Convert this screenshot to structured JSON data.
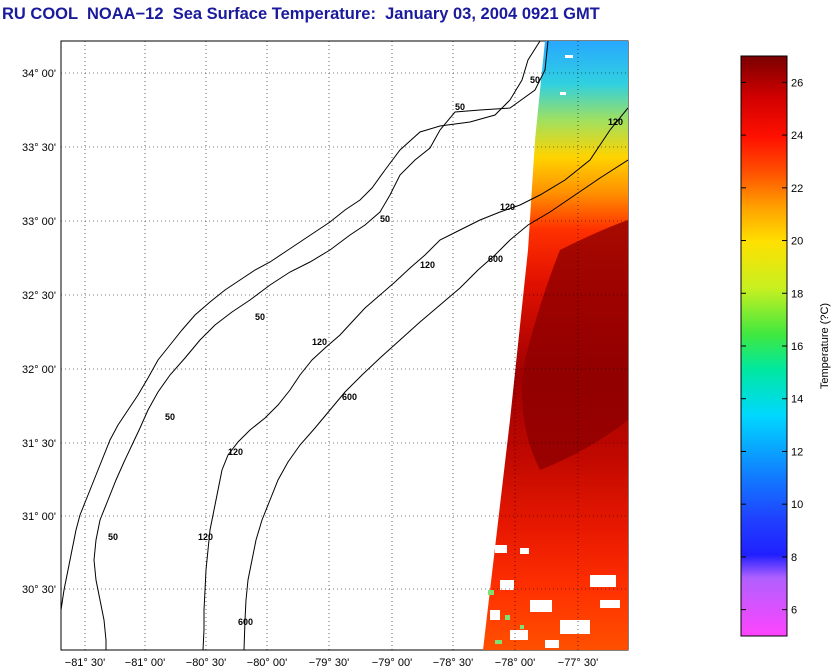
{
  "title": "RU COOL  NOAA−12  Sea Surface Temperature:  January 03, 2004 0921 GMT",
  "map": {
    "lat_ticks": [
      "34° 00'",
      "33° 30'",
      "33° 00'",
      "32° 30'",
      "32° 00'",
      "31° 30'",
      "31° 00'",
      "30° 30'"
    ],
    "lon_ticks": [
      "−81° 30'",
      "−81° 00'",
      "−80° 30'",
      "−80° 00'",
      "−79° 30'",
      "−79° 00'",
      "−78° 30'",
      "−78° 00'",
      "−77° 30'"
    ],
    "contour_labels": [
      "50",
      "50",
      "50",
      "50",
      "50",
      "50",
      "120",
      "120",
      "120",
      "120",
      "120",
      "120",
      "600",
      "600",
      "600"
    ],
    "colors": {
      "land_bg": "#ffffff",
      "warm": "#cc1100",
      "hot": "#8b0000",
      "cool": "#ffd000",
      "cold": "#22b8ff"
    }
  },
  "colorbar": {
    "label": "Temperature (?C)",
    "ticks": [
      "26",
      "24",
      "22",
      "20",
      "18",
      "16",
      "14",
      "12",
      "10",
      "8",
      "6"
    ],
    "min": 5,
    "max": 27
  }
}
